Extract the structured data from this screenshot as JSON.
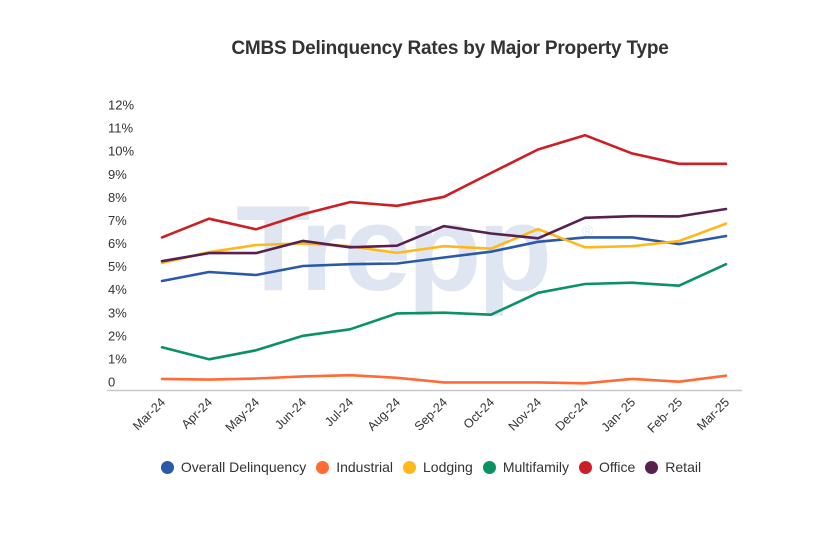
{
  "chart_data": {
    "type": "line",
    "title": "CMBS Delinquency Rates by Major Property Type",
    "xlabel": "",
    "ylabel": "",
    "ylim": [
      0,
      12
    ],
    "grid": false,
    "legend_position": "bottom",
    "watermark": "Trepp",
    "watermark_mark": "®",
    "x": [
      "Mar-24",
      "Apr-24",
      "May-24",
      "Jun-24",
      "Jul-24",
      "Aug-24",
      "Sep-24",
      "Oct-24",
      "Nov-24",
      "Dec-24",
      "Jan- 25",
      "Feb- 25",
      "Mar-25"
    ],
    "yticks": [
      {
        "value": 0,
        "label": "0"
      },
      {
        "value": 1,
        "label": "1%"
      },
      {
        "value": 2,
        "label": "2%"
      },
      {
        "value": 3,
        "label": "3%"
      },
      {
        "value": 4,
        "label": "4%"
      },
      {
        "value": 5,
        "label": "5%"
      },
      {
        "value": 6,
        "label": "6%"
      },
      {
        "value": 7,
        "label": "7%"
      },
      {
        "value": 8,
        "label": "8%"
      },
      {
        "value": 9,
        "label": "9%"
      },
      {
        "value": 10,
        "label": "10%"
      },
      {
        "value": 11,
        "label": "11%"
      },
      {
        "value": 12,
        "label": "12%"
      }
    ],
    "series": [
      {
        "name": "Overall Delinquency",
        "color": "#2a59a8",
        "values": [
          4.72,
          5.11,
          4.98,
          5.37,
          5.45,
          5.48,
          5.74,
          5.99,
          6.42,
          6.61,
          6.61,
          6.32,
          6.67
        ]
      },
      {
        "name": "Industrial",
        "color": "#ff6a35",
        "values": [
          0.48,
          0.45,
          0.5,
          0.59,
          0.64,
          0.53,
          0.33,
          0.33,
          0.33,
          0.29,
          0.48,
          0.36,
          0.62
        ]
      },
      {
        "name": "Lodging",
        "color": "#ffb81c",
        "values": [
          5.5,
          5.97,
          6.28,
          6.35,
          6.23,
          5.94,
          6.23,
          6.12,
          6.97,
          6.18,
          6.23,
          6.45,
          7.21
        ]
      },
      {
        "name": "Multifamily",
        "color": "#0b9166",
        "values": [
          1.85,
          1.33,
          1.72,
          2.35,
          2.63,
          3.32,
          3.35,
          3.26,
          4.21,
          4.59,
          4.65,
          4.52,
          5.45
        ]
      },
      {
        "name": "Office",
        "color": "#cc1e24",
        "values": [
          6.61,
          7.42,
          6.96,
          7.62,
          8.14,
          7.98,
          8.37,
          9.4,
          10.42,
          11.04,
          10.25,
          9.8,
          9.8
        ]
      },
      {
        "name": "Retail",
        "color": "#57204f",
        "values": [
          5.58,
          5.93,
          5.93,
          6.46,
          6.18,
          6.25,
          7.1,
          6.78,
          6.57,
          7.46,
          7.53,
          7.52,
          7.84
        ]
      }
    ]
  }
}
